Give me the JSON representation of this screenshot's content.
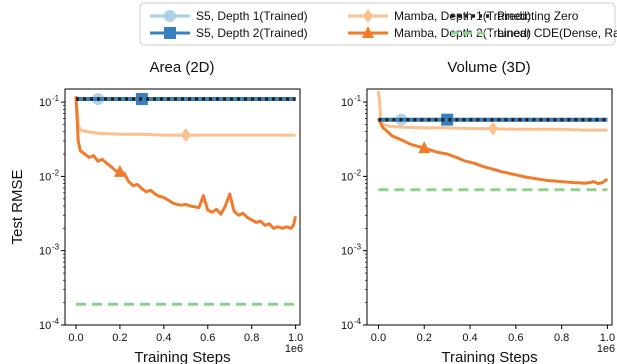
{
  "chart_data": [
    {
      "type": "line",
      "title": "Area (2D)",
      "xlabel": "Training Steps",
      "ylabel": "Test RMSE",
      "x_offset_text": "1e6",
      "yscale": "log",
      "xlim": [
        -0.05,
        1.02
      ],
      "ylim": [
        0.0001,
        0.15
      ],
      "xticks": [
        0.0,
        0.2,
        0.4,
        0.6,
        0.8,
        1.0
      ],
      "xtick_labels": [
        "0.0",
        "0.2",
        "0.4",
        "0.6",
        "0.8",
        "1.0"
      ],
      "yticks": [
        {
          "base": "10",
          "exp": "-4",
          "value": 0.0001
        },
        {
          "base": "10",
          "exp": "-3",
          "value": 0.001
        },
        {
          "base": "10",
          "exp": "-2",
          "value": 0.01
        },
        {
          "base": "10",
          "exp": "-1",
          "value": 0.1
        }
      ],
      "series": [
        {
          "name": "S5, Depth 1(Trained)",
          "color": "#a6cee3",
          "marker": "circle",
          "x": [
            0.0,
            0.1,
            0.3,
            0.5,
            0.7,
            1.0
          ],
          "y": [
            0.11,
            0.11,
            0.11,
            0.11,
            0.11,
            0.11
          ],
          "marker_x": [
            0.1
          ]
        },
        {
          "name": "S5, Depth 2(Trained)",
          "color": "#3a7fbd",
          "marker": "square",
          "x": [
            0.0,
            0.3,
            0.6,
            1.0
          ],
          "y": [
            0.11,
            0.11,
            0.11,
            0.11
          ],
          "marker_x": [
            0.3
          ]
        },
        {
          "name": "Mamba, Depth 1(Trained)",
          "color": "#fbc08c",
          "marker": "diamond",
          "x": [
            0.0,
            0.01,
            0.02,
            0.05,
            0.1,
            0.2,
            0.3,
            0.4,
            0.5,
            0.6,
            0.7,
            0.8,
            0.9,
            1.0
          ],
          "y": [
            0.12,
            0.05,
            0.042,
            0.04,
            0.038,
            0.037,
            0.037,
            0.036,
            0.036,
            0.036,
            0.036,
            0.036,
            0.036,
            0.036
          ],
          "marker_x": [
            0.5
          ]
        },
        {
          "name": "Mamba, Depth 2(Trained)",
          "color": "#f07b2a",
          "marker": "triangle",
          "x": [
            0.0,
            0.005,
            0.01,
            0.02,
            0.04,
            0.06,
            0.08,
            0.1,
            0.12,
            0.14,
            0.16,
            0.18,
            0.2,
            0.22,
            0.24,
            0.26,
            0.28,
            0.3,
            0.32,
            0.34,
            0.36,
            0.38,
            0.4,
            0.42,
            0.44,
            0.46,
            0.48,
            0.5,
            0.52,
            0.54,
            0.56,
            0.58,
            0.6,
            0.62,
            0.64,
            0.66,
            0.68,
            0.7,
            0.72,
            0.74,
            0.76,
            0.78,
            0.8,
            0.82,
            0.84,
            0.86,
            0.88,
            0.9,
            0.92,
            0.94,
            0.96,
            0.98,
            0.99,
            1.0
          ],
          "y": [
            0.12,
            0.06,
            0.03,
            0.022,
            0.02,
            0.018,
            0.019,
            0.016,
            0.017,
            0.015,
            0.0135,
            0.012,
            0.0115,
            0.011,
            0.0085,
            0.0075,
            0.0078,
            0.0068,
            0.0062,
            0.0065,
            0.0058,
            0.0054,
            0.0052,
            0.0048,
            0.0044,
            0.0042,
            0.0041,
            0.0042,
            0.004,
            0.0039,
            0.0038,
            0.0055,
            0.0035,
            0.0033,
            0.0036,
            0.0031,
            0.004,
            0.0058,
            0.0034,
            0.003,
            0.0032,
            0.0028,
            0.0026,
            0.0024,
            0.0025,
            0.0022,
            0.0023,
            0.002,
            0.0021,
            0.002,
            0.0021,
            0.002,
            0.0022,
            0.0029
          ],
          "marker_x": [
            0.2
          ]
        },
        {
          "name": "Predicting Zero",
          "color": "#222222",
          "dash": "dotted",
          "x": [
            0.0,
            1.0
          ],
          "y": [
            0.11,
            0.11
          ]
        },
        {
          "name": "Linear CDE(Dense, Random)",
          "color": "#8fd18a",
          "dash": "dashed",
          "x": [
            0.0,
            1.0
          ],
          "y": [
            0.00019,
            0.00019
          ]
        }
      ]
    },
    {
      "type": "line",
      "title": "Volume (3D)",
      "xlabel": "Training Steps",
      "ylabel": "",
      "x_offset_text": "1e6",
      "yscale": "log",
      "xlim": [
        -0.05,
        1.02
      ],
      "ylim": [
        0.0001,
        0.15
      ],
      "xticks": [
        0.0,
        0.2,
        0.4,
        0.6,
        0.8,
        1.0
      ],
      "xtick_labels": [
        "0.0",
        "0.2",
        "0.4",
        "0.6",
        "0.8",
        "1.0"
      ],
      "yticks": [
        {
          "base": "10",
          "exp": "-4",
          "value": 0.0001
        },
        {
          "base": "10",
          "exp": "-3",
          "value": 0.001
        },
        {
          "base": "10",
          "exp": "-2",
          "value": 0.01
        },
        {
          "base": "10",
          "exp": "-1",
          "value": 0.1
        }
      ],
      "series": [
        {
          "name": "S5, Depth 1(Trained)",
          "color": "#a6cee3",
          "marker": "circle",
          "x": [
            0.0,
            0.1,
            0.3,
            0.5,
            0.7,
            1.0
          ],
          "y": [
            0.058,
            0.058,
            0.058,
            0.058,
            0.058,
            0.058
          ],
          "marker_x": [
            0.1
          ]
        },
        {
          "name": "S5, Depth 2(Trained)",
          "color": "#3a7fbd",
          "marker": "square",
          "x": [
            0.0,
            0.3,
            0.6,
            1.0
          ],
          "y": [
            0.058,
            0.058,
            0.058,
            0.058
          ],
          "marker_x": [
            0.3
          ]
        },
        {
          "name": "Mamba, Depth 1(Trained)",
          "color": "#fbc08c",
          "marker": "diamond",
          "x": [
            0.0,
            0.005,
            0.01,
            0.02,
            0.05,
            0.1,
            0.2,
            0.3,
            0.4,
            0.5,
            0.6,
            0.7,
            0.8,
            0.9,
            1.0
          ],
          "y": [
            0.14,
            0.1,
            0.06,
            0.05,
            0.047,
            0.046,
            0.045,
            0.045,
            0.044,
            0.044,
            0.043,
            0.043,
            0.043,
            0.042,
            0.042
          ],
          "marker_x": [
            0.5
          ]
        },
        {
          "name": "Mamba, Depth 2(Trained)",
          "color": "#f07b2a",
          "marker": "triangle",
          "x": [
            0.0,
            0.02,
            0.04,
            0.06,
            0.08,
            0.1,
            0.12,
            0.14,
            0.16,
            0.18,
            0.2,
            0.22,
            0.24,
            0.26,
            0.28,
            0.3,
            0.32,
            0.34,
            0.36,
            0.38,
            0.4,
            0.42,
            0.44,
            0.46,
            0.48,
            0.5,
            0.52,
            0.54,
            0.56,
            0.58,
            0.6,
            0.62,
            0.64,
            0.66,
            0.68,
            0.7,
            0.72,
            0.74,
            0.76,
            0.78,
            0.8,
            0.82,
            0.84,
            0.86,
            0.88,
            0.9,
            0.92,
            0.94,
            0.96,
            0.98,
            1.0
          ],
          "y": [
            0.06,
            0.045,
            0.04,
            0.035,
            0.033,
            0.031,
            0.029,
            0.027,
            0.026,
            0.025,
            0.024,
            0.023,
            0.022,
            0.021,
            0.0205,
            0.02,
            0.019,
            0.018,
            0.017,
            0.016,
            0.0155,
            0.015,
            0.0142,
            0.0135,
            0.013,
            0.0125,
            0.012,
            0.0115,
            0.0112,
            0.0108,
            0.0105,
            0.0102,
            0.0098,
            0.0096,
            0.0094,
            0.0092,
            0.009,
            0.0088,
            0.0087,
            0.0086,
            0.0085,
            0.0084,
            0.0083,
            0.0082,
            0.0082,
            0.0081,
            0.0082,
            0.0085,
            0.008,
            0.0083,
            0.0092
          ],
          "marker_x": [
            0.2
          ]
        },
        {
          "name": "Predicting Zero",
          "color": "#222222",
          "dash": "dotted",
          "x": [
            0.0,
            1.0
          ],
          "y": [
            0.058,
            0.058
          ]
        },
        {
          "name": "Linear CDE(Dense, Random)",
          "color": "#8fd18a",
          "dash": "dashed",
          "x": [
            0.0,
            1.0
          ],
          "y": [
            0.0066,
            0.0066
          ]
        }
      ]
    }
  ],
  "legend": {
    "placement": "top-center",
    "entries": [
      {
        "label": "S5, Depth 1(Trained)",
        "color": "#a6cee3",
        "marker": "circle"
      },
      {
        "label": "S5, Depth 2(Trained)",
        "color": "#3a7fbd",
        "marker": "square"
      },
      {
        "label": "Mamba, Depth 1(Trained)",
        "color": "#fbc08c",
        "marker": "diamond"
      },
      {
        "label": "Mamba, Depth 2(Trained)",
        "color": "#f07b2a",
        "marker": "triangle"
      },
      {
        "label": "Predicting Zero",
        "color": "#222222",
        "dash": "dotted"
      },
      {
        "label": "Linear CDE(Dense, Random)",
        "color": "#8fd18a",
        "dash": "dashed"
      }
    ]
  }
}
